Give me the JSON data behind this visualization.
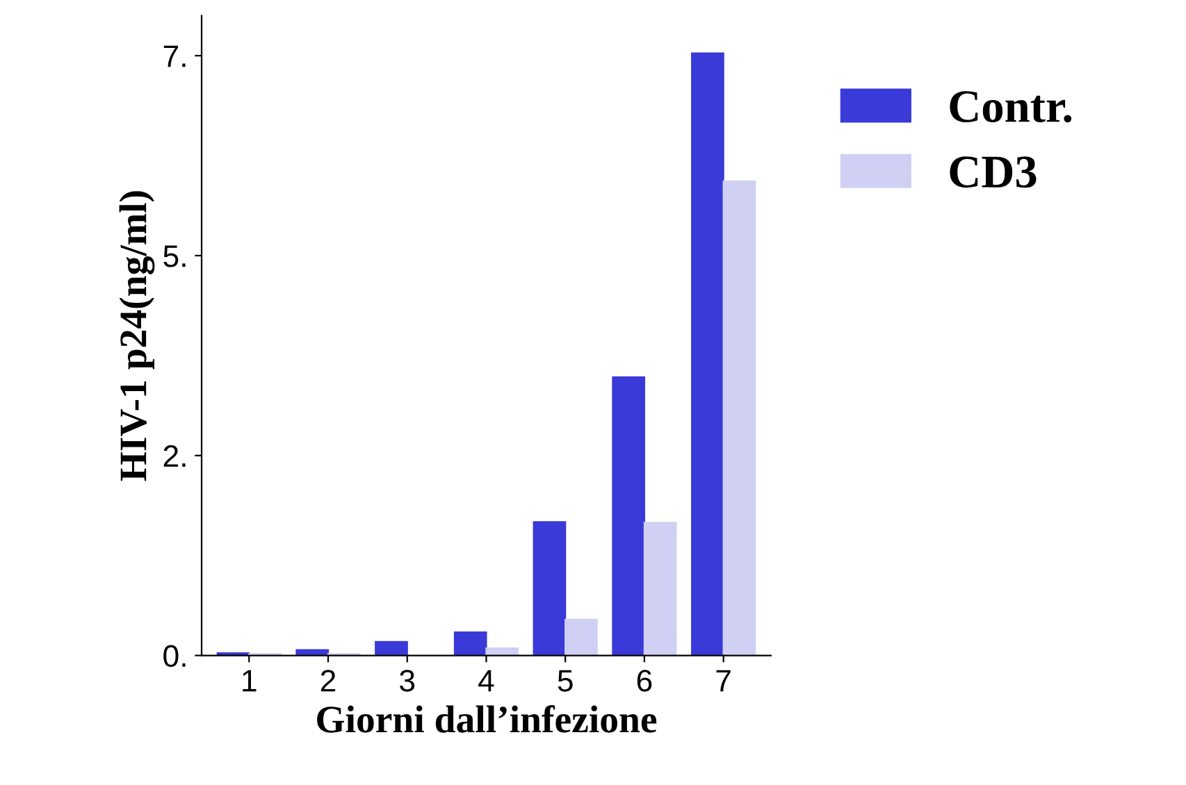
{
  "chart_data": {
    "type": "bar",
    "xlabel": "Giorni dall’infezione",
    "ylabel": "HIV-1 p24(ng/ml)",
    "categories": [
      "1",
      "2",
      "3",
      "4",
      "5",
      "6",
      "7"
    ],
    "series": [
      {
        "name": "Contr.",
        "color": "#3a3ad8",
        "values": [
          0.03,
          0.07,
          0.17,
          0.29,
          1.67,
          3.48,
          7.53
        ]
      },
      {
        "name": "CD3",
        "color": "#d0d0f4",
        "values": [
          0.02,
          0.02,
          null,
          0.09,
          0.45,
          1.66,
          5.93
        ]
      }
    ],
    "ylim": [
      0,
      8
    ],
    "yticks": [
      {
        "value": 0,
        "label": "0."
      },
      {
        "value": 2.5,
        "label": "2."
      },
      {
        "value": 5,
        "label": "5."
      },
      {
        "value": 7.5,
        "label": "7."
      }
    ],
    "legend": "top right",
    "grid": false
  }
}
